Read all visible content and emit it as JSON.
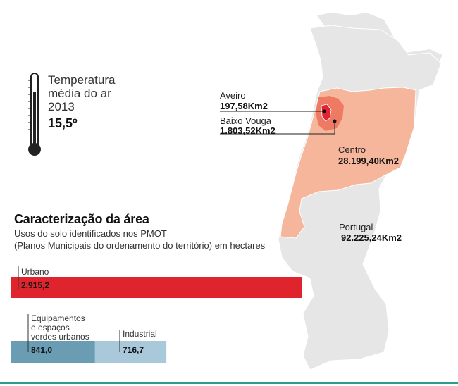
{
  "temperature": {
    "title_lines": [
      "Temperatura",
      "média do ar",
      "2013"
    ],
    "value": "15,5º"
  },
  "map_labels": {
    "aveiro": {
      "name": "Aveiro",
      "area": "197,58Km2"
    },
    "baixo_vouga": {
      "name": "Baixo Vouga",
      "area": "1.803,52Km2"
    },
    "centro": {
      "name": "Centro",
      "area": "28.199,40Km2"
    },
    "portugal": {
      "name": "Portugal",
      "area": "92.225,24Km2"
    }
  },
  "colors": {
    "portugal": "#e6e6e6",
    "centro": "#f5b69c",
    "baixo_vouga": "#ee7a63",
    "aveiro": "#e02431",
    "bar_urbano": "#e0242d",
    "bar_equipamentos": "#6a9cb4",
    "bar_industrial": "#a9c9db",
    "rule": "#2a9d8f"
  },
  "section": {
    "title": "Caracterização da área",
    "subtitle_1": "Usos do solo identificados nos PMOT",
    "subtitle_2": "(Planos Municipais do ordenamento do território) em hectares"
  },
  "chart_data": {
    "type": "bar",
    "title": "Caracterização da área",
    "subtitle": "Usos do solo identificados nos PMOT (Planos Municipais do ordenamento do território) em hectares",
    "categories": [
      "Urbano",
      "Equipamentos e espaços verdes urbanos",
      "Industrial"
    ],
    "values": [
      2915.2,
      841.0,
      716.7
    ],
    "value_labels": [
      "2.915,2",
      "841,0",
      "716,7"
    ],
    "label_lines": [
      [
        "Urbano"
      ],
      [
        "Equipamentos",
        "e espaços",
        "verdes urbanos"
      ],
      [
        "Industrial"
      ]
    ],
    "stacked_second_row": true
  }
}
